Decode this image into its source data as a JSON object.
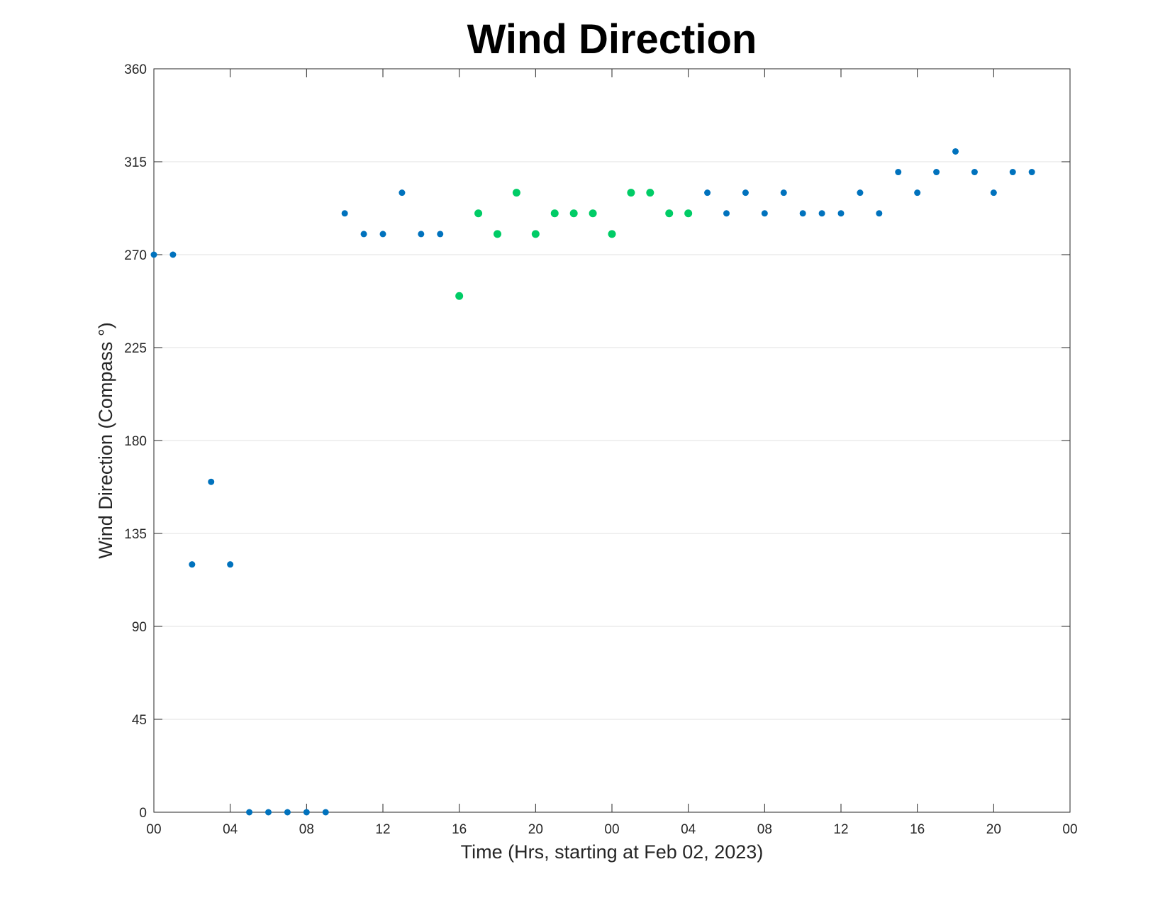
{
  "chart_data": {
    "type": "scatter",
    "title": "Wind Direction",
    "xlabel": "Time (Hrs, starting at Feb 02, 2023)",
    "ylabel": "Wind Direction (Compass °)",
    "xlim": [
      0,
      48
    ],
    "ylim": [
      0,
      360
    ],
    "x_ticks": [
      0,
      4,
      8,
      12,
      16,
      20,
      24,
      28,
      32,
      36,
      40,
      44,
      48
    ],
    "x_tick_labels": [
      "00",
      "04",
      "08",
      "12",
      "16",
      "20",
      "00",
      "04",
      "08",
      "12",
      "16",
      "20",
      "00"
    ],
    "y_ticks": [
      0,
      45,
      90,
      135,
      180,
      225,
      270,
      315,
      360
    ],
    "y_tick_labels": [
      "0",
      "45",
      "90",
      "135",
      "180",
      "225",
      "270",
      "315",
      "360"
    ],
    "grid": "horizontal",
    "colors": {
      "blue": "#0072bd",
      "green": "#00cc66"
    },
    "series": [
      {
        "color": "#0072bd",
        "x": [
          0,
          1,
          2,
          3,
          4,
          5,
          6,
          7,
          8,
          9,
          10,
          11,
          12,
          13,
          14,
          15,
          29,
          30,
          31,
          32,
          33,
          34,
          35,
          36,
          37,
          38,
          39,
          40,
          41,
          42,
          43,
          44,
          45,
          46
        ],
        "y": [
          270,
          270,
          120,
          160,
          120,
          0,
          0,
          0,
          0,
          0,
          290,
          280,
          280,
          300,
          280,
          280,
          300,
          290,
          300,
          290,
          300,
          290,
          290,
          290,
          300,
          290,
          310,
          300,
          310,
          320,
          310,
          300,
          310,
          310
        ]
      },
      {
        "color": "#00cc66",
        "x": [
          16,
          17,
          18,
          19,
          20,
          21,
          22,
          23,
          24,
          25,
          26,
          27,
          28
        ],
        "y": [
          250,
          290,
          280,
          300,
          280,
          290,
          290,
          290,
          280,
          300,
          300,
          290,
          290
        ]
      }
    ]
  }
}
